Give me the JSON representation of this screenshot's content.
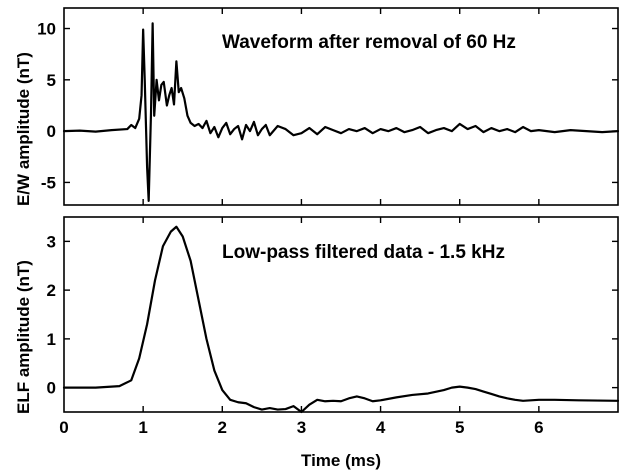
{
  "chart_data": [
    {
      "type": "line",
      "title": "Waveform after removal of 60 Hz",
      "xlabel": "",
      "ylabel": "E/W amplitude (nT)",
      "xlim": [
        0,
        7
      ],
      "ylim": [
        -7.2,
        12
      ],
      "xticks": [
        0,
        1,
        2,
        3,
        4,
        5,
        6
      ],
      "yticks": [
        -5,
        0,
        5,
        10
      ],
      "series": [
        {
          "x": [
            0,
            0.2,
            0.4,
            0.6,
            0.8,
            0.85,
            0.9,
            0.95,
            0.98,
            1.0,
            1.02,
            1.05,
            1.07,
            1.1,
            1.12,
            1.14,
            1.17,
            1.2,
            1.23,
            1.26,
            1.3,
            1.33,
            1.36,
            1.39,
            1.42,
            1.45,
            1.48,
            1.52,
            1.56,
            1.6,
            1.65,
            1.7,
            1.75,
            1.8,
            1.85,
            1.9,
            1.95,
            2.0,
            2.05,
            2.1,
            2.15,
            2.2,
            2.25,
            2.3,
            2.35,
            2.4,
            2.45,
            2.5,
            2.55,
            2.6,
            2.7,
            2.8,
            2.9,
            3.0,
            3.1,
            3.2,
            3.3,
            3.4,
            3.5,
            3.6,
            3.7,
            3.8,
            3.9,
            4.0,
            4.1,
            4.2,
            4.3,
            4.4,
            4.5,
            4.6,
            4.7,
            4.8,
            4.9,
            5.0,
            5.1,
            5.2,
            5.3,
            5.4,
            5.5,
            5.6,
            5.7,
            5.8,
            5.9,
            6.0,
            6.2,
            6.4,
            6.6,
            6.8,
            7.0
          ],
          "y": [
            0,
            0.05,
            -0.05,
            0.1,
            0.2,
            0.6,
            0.3,
            1.2,
            3.5,
            9.9,
            5.0,
            -3.5,
            -6.8,
            2.0,
            10.5,
            1.5,
            5.0,
            3.0,
            4.5,
            4.8,
            2.5,
            3.5,
            4.2,
            2.6,
            6.8,
            3.8,
            4.2,
            3.2,
            1.5,
            0.8,
            0.5,
            0.7,
            0.3,
            1.0,
            -0.2,
            0.4,
            -0.6,
            0.3,
            0.8,
            -0.3,
            0.2,
            0.5,
            -0.8,
            0.6,
            0.0,
            0.9,
            -0.4,
            0.2,
            0.6,
            -0.4,
            0.5,
            0.2,
            -0.4,
            -0.2,
            0.3,
            -0.3,
            0.4,
            0.1,
            -0.2,
            0.2,
            0.0,
            0.3,
            -0.2,
            0.2,
            0.0,
            0.3,
            -0.1,
            0.1,
            0.4,
            -0.2,
            0.1,
            0.3,
            0.0,
            0.7,
            0.2,
            0.5,
            -0.1,
            0.3,
            0.0,
            0.2,
            -0.1,
            0.4,
            0.0,
            0.1,
            -0.1,
            0.1,
            0.0,
            -0.1,
            0.0
          ]
        }
      ]
    },
    {
      "type": "line",
      "title": "Low-pass filtered data - 1.5 kHz",
      "xlabel": "Time (ms)",
      "ylabel": "ELF amplitude (nT)",
      "xlim": [
        0,
        7
      ],
      "ylim": [
        -0.5,
        3.5
      ],
      "xticks": [
        0,
        1,
        2,
        3,
        4,
        5,
        6
      ],
      "yticks": [
        0,
        1,
        2,
        3
      ],
      "series": [
        {
          "x": [
            0,
            0.4,
            0.7,
            0.85,
            0.95,
            1.05,
            1.15,
            1.25,
            1.35,
            1.42,
            1.5,
            1.6,
            1.7,
            1.8,
            1.9,
            2.0,
            2.1,
            2.2,
            2.3,
            2.4,
            2.5,
            2.6,
            2.7,
            2.8,
            2.9,
            3.0,
            3.1,
            3.2,
            3.3,
            3.4,
            3.5,
            3.6,
            3.7,
            3.8,
            3.9,
            4.0,
            4.2,
            4.4,
            4.6,
            4.8,
            4.9,
            5.0,
            5.1,
            5.2,
            5.3,
            5.4,
            5.5,
            5.6,
            5.7,
            5.8,
            6.0,
            6.2,
            6.5,
            7.0
          ],
          "y": [
            0.0,
            0.0,
            0.03,
            0.15,
            0.6,
            1.3,
            2.2,
            2.9,
            3.2,
            3.3,
            3.1,
            2.6,
            1.8,
            1.0,
            0.35,
            -0.05,
            -0.25,
            -0.3,
            -0.32,
            -0.4,
            -0.45,
            -0.42,
            -0.45,
            -0.44,
            -0.38,
            -0.5,
            -0.35,
            -0.25,
            -0.28,
            -0.27,
            -0.28,
            -0.22,
            -0.18,
            -0.22,
            -0.28,
            -0.26,
            -0.2,
            -0.15,
            -0.12,
            -0.05,
            0.0,
            0.02,
            0.0,
            -0.03,
            -0.08,
            -0.13,
            -0.18,
            -0.22,
            -0.25,
            -0.27,
            -0.25,
            -0.25,
            -0.26,
            -0.27
          ]
        }
      ]
    }
  ]
}
